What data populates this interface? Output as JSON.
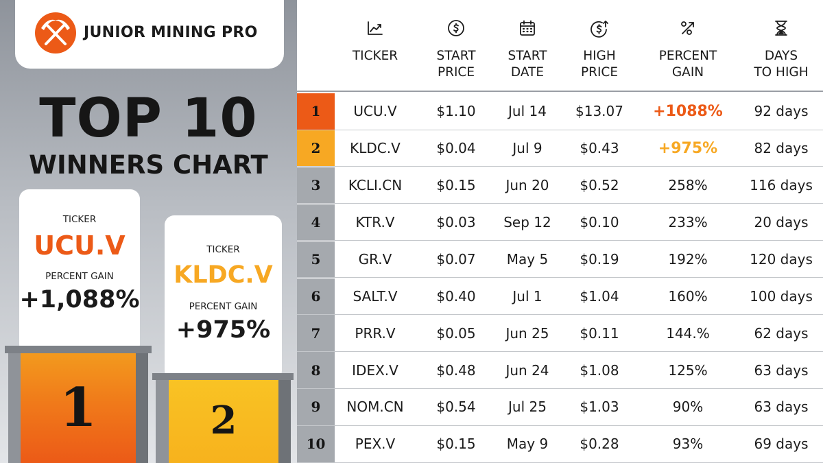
{
  "brand": {
    "name": "JUNIOR MINING PRO",
    "logo_icon": "crossed-pickaxe-icon",
    "accent": "#ec5a17",
    "gold": "#f7a823"
  },
  "headline": {
    "line1": "TOP 10",
    "line2": "WINNERS CHART"
  },
  "podium": [
    {
      "place": "1",
      "ticker_label": "TICKER",
      "ticker": "UCU.V",
      "gain_label": "PERCENT GAIN",
      "gain": "+1,088%",
      "color": "#ec5a17"
    },
    {
      "place": "2",
      "ticker_label": "TICKER",
      "ticker": "KLDC.V",
      "gain_label": "PERCENT GAIN",
      "gain": "+975%",
      "color": "#f7a823"
    }
  ],
  "chart_data": {
    "type": "table",
    "columns": [
      {
        "key": "ticker",
        "label": "TICKER",
        "icon": "line-chart-icon"
      },
      {
        "key": "start_price",
        "label": "START\nPRICE",
        "icon": "dollar-circle-icon"
      },
      {
        "key": "start_date",
        "label": "START\nDATE",
        "icon": "calendar-icon"
      },
      {
        "key": "high_price",
        "label": "HIGH\nPRICE",
        "icon": "dollar-up-arrow-icon"
      },
      {
        "key": "percent_gain",
        "label": "PERCENT\nGAIN",
        "icon": "percent-arrow-icon"
      },
      {
        "key": "days_to_high",
        "label": "DAYS\nTO HIGH",
        "icon": "hourglass-icon"
      }
    ],
    "rows": [
      {
        "rank": "1",
        "ticker": "UCU.V",
        "start_price": "$1.10",
        "start_date": "Jul 14",
        "high_price": "$13.07",
        "percent_gain": "+1088%",
        "days_to_high": "92 days",
        "rank_color": "#ec5a17",
        "gain_color": "#ec5a17",
        "highlight": true
      },
      {
        "rank": "2",
        "ticker": "KLDC.V",
        "start_price": "$0.04",
        "start_date": "Jul 9",
        "high_price": "$0.43",
        "percent_gain": "+975%",
        "days_to_high": "82 days",
        "rank_color": "#f7a823",
        "gain_color": "#f7a823",
        "highlight": true
      },
      {
        "rank": "3",
        "ticker": "KCLI.CN",
        "start_price": "$0.15",
        "start_date": "Jun 20",
        "high_price": "$0.52",
        "percent_gain": "258%",
        "days_to_high": "116 days"
      },
      {
        "rank": "4",
        "ticker": "KTR.V",
        "start_price": "$0.03",
        "start_date": "Sep 12",
        "high_price": "$0.10",
        "percent_gain": "233%",
        "days_to_high": "20 days"
      },
      {
        "rank": "5",
        "ticker": "GR.V",
        "start_price": "$0.07",
        "start_date": "May 5",
        "high_price": "$0.19",
        "percent_gain": "192%",
        "days_to_high": "120 days"
      },
      {
        "rank": "6",
        "ticker": "SALT.V",
        "start_price": "$0.40",
        "start_date": "Jul 1",
        "high_price": "$1.04",
        "percent_gain": "160%",
        "days_to_high": "100 days"
      },
      {
        "rank": "7",
        "ticker": "PRR.V",
        "start_price": "$0.05",
        "start_date": "Jun 25",
        "high_price": "$0.11",
        "percent_gain": "144.%",
        "days_to_high": "62 days"
      },
      {
        "rank": "8",
        "ticker": "IDEX.V",
        "start_price": "$0.48",
        "start_date": "Jun 24",
        "high_price": "$1.08",
        "percent_gain": "125%",
        "days_to_high": "63 days"
      },
      {
        "rank": "9",
        "ticker": "NOM.CN",
        "start_price": "$0.54",
        "start_date": "Jul 25",
        "high_price": "$1.03",
        "percent_gain": "90%",
        "days_to_high": "63 days"
      },
      {
        "rank": "10",
        "ticker": "PEX.V",
        "start_price": "$0.15",
        "start_date": "May 9",
        "high_price": "$0.28",
        "percent_gain": "93%",
        "days_to_high": "69 days"
      }
    ]
  }
}
